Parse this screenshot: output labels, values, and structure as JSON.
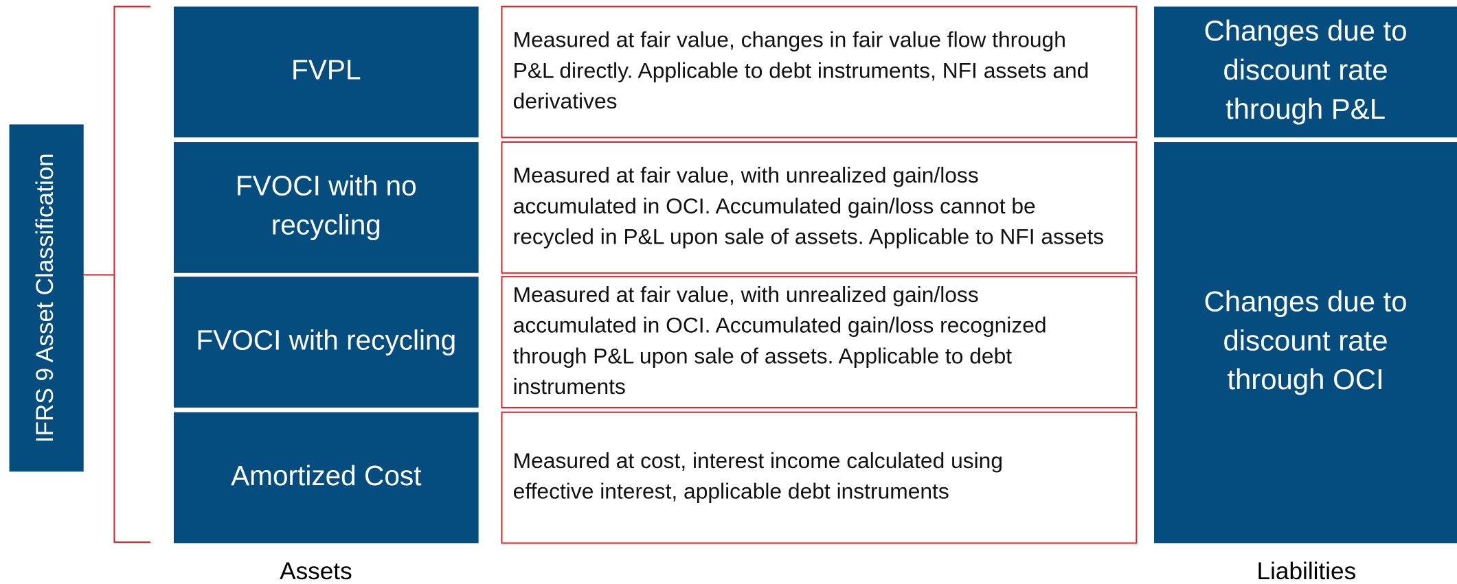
{
  "side_label": "IFRS 9 Asset Classification",
  "assets_label": "Assets",
  "liabilities_label": "Liabilities",
  "rows": [
    {
      "category": [
        "FVPL"
      ],
      "description": [
        "Measured at fair value, changes in fair value flow through",
        "P&L directly. Applicable to debt instruments, NFI assets and",
        "derivatives"
      ]
    },
    {
      "category": [
        "FVOCI with no",
        "recycling"
      ],
      "description": [
        "Measured at fair value, with unrealized gain/loss",
        "accumulated in OCI. Accumulated gain/loss cannot be",
        "recycled in P&L upon sale of assets. Applicable to NFI assets"
      ]
    },
    {
      "category": [
        "FVOCI with recycling"
      ],
      "description": [
        "Measured at fair value, with unrealized gain/loss",
        "accumulated in OCI. Accumulated gain/loss recognized",
        "through P&L upon sale of assets. Applicable to debt",
        "instruments"
      ]
    },
    {
      "category": [
        "Amortized Cost"
      ],
      "description": [
        "Measured at cost, interest income calculated using",
        "effective interest, applicable debt instruments"
      ]
    }
  ],
  "liabilities": [
    {
      "lines": [
        "Changes due to",
        "discount rate",
        "through P&L"
      ]
    },
    {
      "lines": [
        "Changes due to",
        "discount rate",
        "through OCI"
      ]
    }
  ]
}
